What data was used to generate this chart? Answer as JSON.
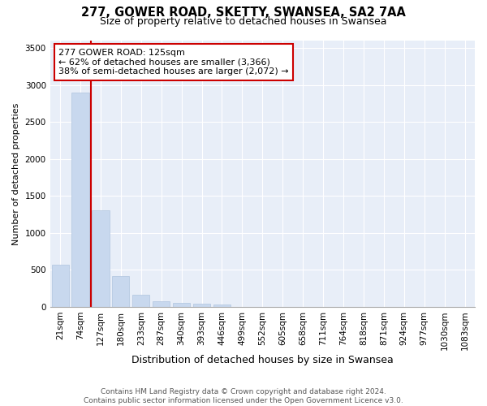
{
  "title1": "277, GOWER ROAD, SKETTY, SWANSEA, SA2 7AA",
  "title2": "Size of property relative to detached houses in Swansea",
  "xlabel": "Distribution of detached houses by size in Swansea",
  "ylabel": "Number of detached properties",
  "categories": [
    "21sqm",
    "74sqm",
    "127sqm",
    "180sqm",
    "233sqm",
    "287sqm",
    "340sqm",
    "393sqm",
    "446sqm",
    "499sqm",
    "552sqm",
    "605sqm",
    "658sqm",
    "711sqm",
    "764sqm",
    "818sqm",
    "871sqm",
    "924sqm",
    "977sqm",
    "1030sqm",
    "1083sqm"
  ],
  "values": [
    575,
    2900,
    1310,
    415,
    160,
    80,
    55,
    45,
    35,
    0,
    0,
    0,
    0,
    0,
    0,
    0,
    0,
    0,
    0,
    0,
    0
  ],
  "bar_color": "#c8d8ee",
  "bar_edge_color": "#b0c4de",
  "vline_x_index": 2,
  "vline_color": "#cc0000",
  "annotation_text": "277 GOWER ROAD: 125sqm\n← 62% of detached houses are smaller (3,366)\n38% of semi-detached houses are larger (2,072) →",
  "annotation_box_facecolor": "#ffffff",
  "annotation_box_edgecolor": "#cc0000",
  "ylim": [
    0,
    3600
  ],
  "yticks": [
    0,
    500,
    1000,
    1500,
    2000,
    2500,
    3000,
    3500
  ],
  "fig_bg_color": "#ffffff",
  "plot_bg_color": "#e8eef8",
  "grid_color": "#ffffff",
  "footnote": "Contains HM Land Registry data © Crown copyright and database right 2024.\nContains public sector information licensed under the Open Government Licence v3.0.",
  "title1_fontsize": 10.5,
  "title2_fontsize": 9,
  "xlabel_fontsize": 9,
  "ylabel_fontsize": 8,
  "tick_fontsize": 7.5,
  "annotation_fontsize": 8,
  "footnote_fontsize": 6.5
}
